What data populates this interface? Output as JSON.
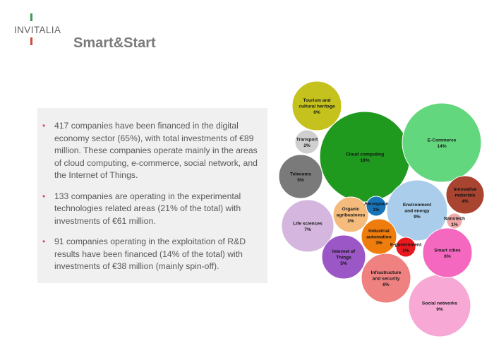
{
  "header": {
    "logo_text": "INVITALIA",
    "title": "Smart&Start"
  },
  "text_panel": {
    "bullets": [
      "417 companies have been financed in the digital economy sector (65%), with total investments of €89 million. These companies operate mainly in the areas of cloud computing, e-commerce, social network, and the Internet of Things.",
      "133 companies are operating in the experimental technologies related areas (21% of the total) with investments of €61 million.",
      "91 companies operating in the exploitation of R&D results have been financed (14% of the total) with investments of €38 million (mainly spin-off)."
    ]
  },
  "colors": {
    "flag_green": "#3b9a57",
    "flag_red": "#cf4b3f",
    "bullet": "#d6437f",
    "title": "#7a7a7a"
  },
  "chart_data": {
    "type": "bubble",
    "unit": "%",
    "series": [
      {
        "label": "Cloud computing",
        "value": 18,
        "color": "#1f9a1f"
      },
      {
        "label": "E-Commerce",
        "value": 14,
        "color": "#62d77e"
      },
      {
        "label": "Social networks",
        "value": 9,
        "color": "#f7a8d4"
      },
      {
        "label": "Environment and energy",
        "value": 9,
        "color": "#a9cdea"
      },
      {
        "label": "Life sciences",
        "value": 7,
        "color": "#d4b6de"
      },
      {
        "label": "Tourism and cultural heritage",
        "value": 6,
        "color": "#c5c21e"
      },
      {
        "label": "Infrastructure and security",
        "value": 6,
        "color": "#ef8181"
      },
      {
        "label": "Smart cities",
        "value": 6,
        "color": "#f468c0"
      },
      {
        "label": "Telecoms",
        "value": 5,
        "color": "#7a7a7a"
      },
      {
        "label": "Internet of Things",
        "value": 5,
        "color": "#9b57c5"
      },
      {
        "label": "Innovative materials",
        "value": 4,
        "color": "#a8442f"
      },
      {
        "label": "Organic agribusiness",
        "value": 3,
        "color": "#f5bb7c"
      },
      {
        "label": "Industrial automation",
        "value": 3,
        "color": "#ef7d0d"
      },
      {
        "label": "Transport",
        "value": 2,
        "color": "#cfcfcf"
      },
      {
        "label": "Aerospace",
        "value": 1,
        "color": "#1774b8"
      },
      {
        "label": "E-government",
        "value": 1,
        "color": "#e8181c"
      },
      {
        "label": "Nanotech",
        "value": 1,
        "color": "#f0a7a7"
      }
    ]
  }
}
